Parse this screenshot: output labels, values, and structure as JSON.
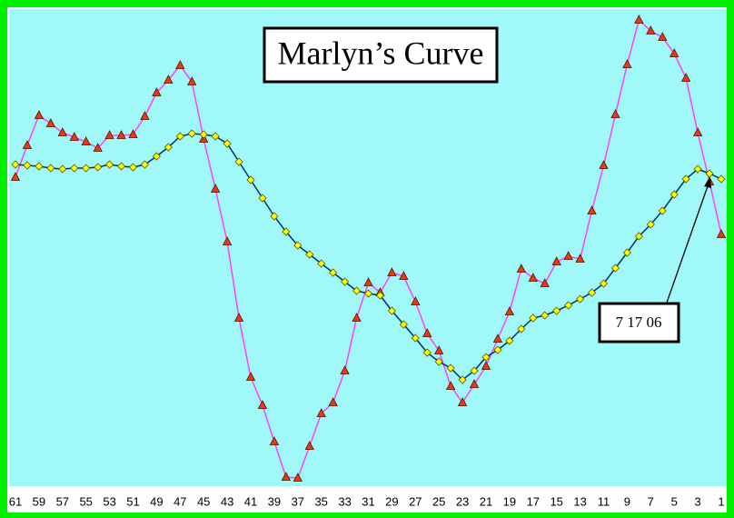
{
  "chart_data": {
    "type": "line",
    "title": "Marlyn’s Curve",
    "annotation": "7 17 06",
    "categories": [
      "61",
      null,
      "59",
      null,
      "57",
      null,
      "55",
      null,
      "53",
      null,
      "51",
      null,
      "49",
      null,
      "47",
      null,
      "45",
      null,
      "43",
      null,
      "41",
      null,
      "39",
      null,
      "37",
      null,
      "35",
      null,
      "33",
      null,
      "31",
      null,
      "29",
      null,
      "27",
      null,
      "25",
      null,
      "23",
      null,
      "21",
      null,
      "19",
      null,
      "17",
      null,
      "15",
      null,
      "13",
      null,
      "11",
      null,
      "9",
      null,
      "7",
      null,
      "5",
      null,
      "3",
      null,
      "1"
    ],
    "ylim": [
      0,
      525
    ],
    "series": [
      {
        "color": "#ff40ff",
        "marker": "triangle",
        "marker_color": "#e83a10",
        "values": [
          340,
          375,
          408,
          399,
          389,
          384,
          379,
          372,
          386,
          386,
          387,
          407,
          433,
          447,
          463,
          445,
          382,
          327,
          269,
          185,
          120,
          89,
          49,
          10,
          9,
          44,
          80,
          92,
          127,
          185,
          224,
          213,
          235,
          231,
          203,
          168,
          149,
          110,
          92,
          112,
          132,
          162,
          192,
          239,
          229,
          223,
          247,
          253,
          250,
          303,
          353,
          409,
          464,
          513,
          501,
          494,
          476,
          449,
          389,
          335,
          277
        ]
      },
      {
        "color": "#003366",
        "marker": "diamond",
        "marker_color": "#ffff00",
        "values": [
          354,
          353,
          352,
          350,
          349,
          350,
          350,
          351,
          354,
          352,
          351,
          354,
          363,
          373,
          385,
          388,
          387,
          385,
          377,
          357,
          337,
          317,
          297,
          280,
          265,
          255,
          245,
          235,
          225,
          215,
          212,
          210,
          193,
          178,
          163,
          147,
          137,
          130,
          117,
          127,
          142,
          150,
          160,
          173,
          185,
          188,
          193,
          199,
          206,
          213,
          223,
          240,
          257,
          275,
          288,
          303,
          321,
          338,
          349,
          344,
          338
        ]
      }
    ]
  }
}
